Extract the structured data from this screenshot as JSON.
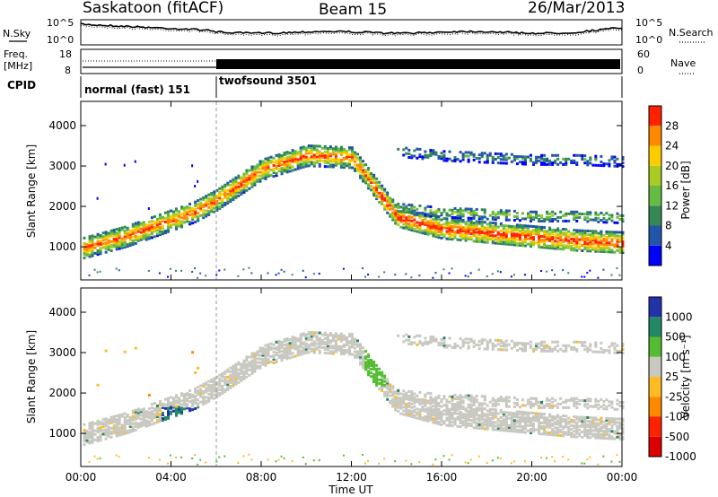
{
  "header": {
    "site": "Saskatoon (fitACF)",
    "beam": "Beam 15",
    "date": "26/Mar/2013"
  },
  "left_labels": {
    "nsky": "N.Sky",
    "freq_line1": "Freq.",
    "freq_line2": "[MHz]",
    "cpid": "CPID"
  },
  "right_labels": {
    "nsearch": "N.Search",
    "nave": "Nave"
  },
  "noise_axis": {
    "left_ticks": [
      "10^5",
      "10^0"
    ],
    "right_ticks": [
      "10^5",
      "10^0"
    ]
  },
  "freq_axis": {
    "left_ticks": [
      "18",
      "8"
    ],
    "right_ticks": [
      "60",
      "0"
    ]
  },
  "cpid_segments": [
    {
      "label": "normal (fast) 151",
      "start_hour": 0,
      "end_hour": 6
    },
    {
      "label": "twofsound 3501",
      "start_hour": 6,
      "end_hour": 24
    }
  ],
  "x_axis": {
    "title": "Time UT",
    "ticks": [
      "00:00",
      "04:00",
      "08:00",
      "12:00",
      "16:00",
      "20:00",
      "00:00"
    ],
    "range_hours": [
      0,
      24
    ]
  },
  "power_panel": {
    "ylabel": "Slant Range [km]",
    "yticks": [
      "4000",
      "3000",
      "2000",
      "1000"
    ],
    "colorbar_label": "Power [dB]",
    "colorbar_ticks": [
      "28",
      "24",
      "20",
      "16",
      "12",
      "8",
      "4"
    ],
    "colors": [
      "#0000ff",
      "#2255aa",
      "#338855",
      "#66bb44",
      "#aacc22",
      "#ffcc00",
      "#ff8800",
      "#ff2200"
    ]
  },
  "velocity_panel": {
    "ylabel": "Slant Range [km]",
    "yticks": [
      "4000",
      "3000",
      "2000",
      "1000"
    ],
    "colorbar_label": "Velocity [m s⁻¹]",
    "colorbar_ticks": [
      "1000",
      "500",
      "100",
      "25",
      "-25",
      "-100",
      "-500",
      "-1000"
    ],
    "colors": [
      "#2233aa",
      "#228866",
      "#55bb33",
      "#c8c8c0",
      "#ffbb22",
      "#ff8800",
      "#ff2200",
      "#dd0000"
    ]
  },
  "chart_data": {
    "type": "heatmap",
    "title": "Saskatoon (fitACF) Beam 15 26/Mar/2013",
    "xlabel": "Time UT",
    "ylabel": "Slant Range [km]",
    "xlim_hours": [
      0,
      24
    ],
    "ylim_km": [
      180,
      4600
    ],
    "series": [
      {
        "name": "Power [dB]",
        "colorbar_range": [
          0,
          30
        ],
        "echo_bands": [
          {
            "t": [
              0,
              2,
              4,
              5,
              6,
              8,
              10,
              12,
              14,
              16,
              18,
              20,
              22,
              24
            ],
            "range_km": [
              1000,
              1300,
              1700,
              1900,
              2200,
              2950,
              3300,
              3250,
              1800,
              1500,
              1400,
              1300,
              1200,
              1150
            ],
            "peak_db": 28
          },
          {
            "t": [
              14,
              16,
              18,
              20,
              22,
              24
            ],
            "range_km": [
              2000,
              1900,
              1850,
              1800,
              1800,
              1750
            ],
            "peak_db": 16
          },
          {
            "t": [
              14,
              16,
              18,
              20,
              22,
              24
            ],
            "range_km": [
              3400,
              3300,
              3250,
              3200,
              3200,
              3150
            ],
            "peak_db": 10
          }
        ]
      },
      {
        "name": "Velocity [m s⁻¹]",
        "colorbar_range": [
          -1000,
          1000
        ],
        "dominant_value": 0
      }
    ]
  }
}
